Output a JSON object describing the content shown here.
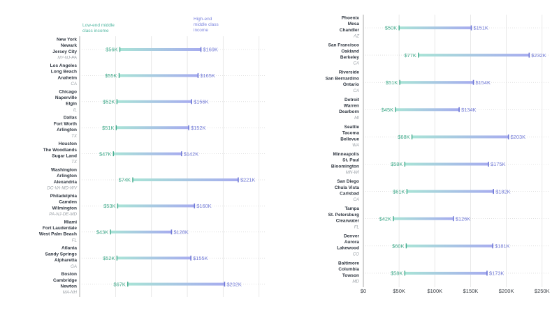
{
  "chart_data": {
    "type": "dumbbell",
    "legend": {
      "low": "Low-end middle\nclass income",
      "high": "High-end\nmiddle class\nincome"
    },
    "colors": {
      "low": "#3fa98a",
      "high": "#6f78d6",
      "bar_low": "#a8e3d6",
      "bar_high": "#a7acef"
    },
    "xlim": [
      0,
      260
    ],
    "x_ticks": [
      {
        "value": 0,
        "label": "$0"
      },
      {
        "value": 50,
        "label": "$50K"
      },
      {
        "value": 100,
        "label": "$100K"
      },
      {
        "value": 150,
        "label": "$150K"
      },
      {
        "value": 200,
        "label": "$200K"
      },
      {
        "value": 250,
        "label": "$250K"
      }
    ],
    "panels": [
      {
        "show_axis_labels": false,
        "metros": [
          {
            "cities": [
              "New York",
              "Newark",
              "Jersey City"
            ],
            "state": "NY-NJ-PA",
            "low": 56,
            "high": 169,
            "low_label": "$56K",
            "high_label": "$169K"
          },
          {
            "cities": [
              "Los Angeles",
              "Long Beach",
              "Anaheim"
            ],
            "state": "CA",
            "low": 55,
            "high": 165,
            "low_label": "$55K",
            "high_label": "$165K"
          },
          {
            "cities": [
              "Chicago",
              "Naperville",
              "Elgin"
            ],
            "state": "IL",
            "low": 52,
            "high": 156,
            "low_label": "$52K",
            "high_label": "$156K"
          },
          {
            "cities": [
              "Dallas",
              "Fort Worth",
              "Arlington"
            ],
            "state": "TX",
            "low": 51,
            "high": 152,
            "low_label": "$51K",
            "high_label": "$152K"
          },
          {
            "cities": [
              "Houston",
              "The Woodlands",
              "Sugar Land"
            ],
            "state": "TX",
            "low": 47,
            "high": 142,
            "low_label": "$47K",
            "high_label": "$142K"
          },
          {
            "cities": [
              "Washington",
              "Arlington",
              "Alexandria"
            ],
            "state": "DC-VA-MD-WV",
            "low": 74,
            "high": 221,
            "low_label": "$74K",
            "high_label": "$221K"
          },
          {
            "cities": [
              "Philadelphia",
              "Camden",
              "Wilmington"
            ],
            "state": "PA-NJ-DE-MD",
            "low": 53,
            "high": 160,
            "low_label": "$53K",
            "high_label": "$160K"
          },
          {
            "cities": [
              "Miami",
              "Fort Lauderdale",
              "West Palm Beach"
            ],
            "state": "FL",
            "low": 43,
            "high": 128,
            "low_label": "$43K",
            "high_label": "$128K"
          },
          {
            "cities": [
              "Atlanta",
              "Sandy Springs",
              "Alpharetta"
            ],
            "state": "GA",
            "low": 52,
            "high": 155,
            "low_label": "$52K",
            "high_label": "$155K"
          },
          {
            "cities": [
              "Boston",
              "Cambridge",
              "Newton"
            ],
            "state": "MA-NH",
            "low": 67,
            "high": 202,
            "low_label": "$67K",
            "high_label": "$202K"
          }
        ]
      },
      {
        "show_axis_labels": true,
        "metros": [
          {
            "cities": [
              "Phoenix",
              "Mesa",
              "Chandler"
            ],
            "state": "AZ",
            "low": 50,
            "high": 151,
            "low_label": "$50K",
            "high_label": "$151K"
          },
          {
            "cities": [
              "San Francisco",
              "Oakland",
              "Berkeley"
            ],
            "state": "CA",
            "low": 77,
            "high": 232,
            "low_label": "$77K",
            "high_label": "$232K"
          },
          {
            "cities": [
              "Riverside",
              "San Bernardino",
              "Ontario"
            ],
            "state": "CA",
            "low": 51,
            "high": 154,
            "low_label": "$51K",
            "high_label": "$154K"
          },
          {
            "cities": [
              "Detroit",
              "Warren",
              "Dearborn"
            ],
            "state": "MI",
            "low": 45,
            "high": 134,
            "low_label": "$45K",
            "high_label": "$134K"
          },
          {
            "cities": [
              "Seattle",
              "Tacoma",
              "Bellevue"
            ],
            "state": "WA",
            "low": 68,
            "high": 203,
            "low_label": "$68K",
            "high_label": "$203K"
          },
          {
            "cities": [
              "Minneapolis",
              "St. Paul",
              "Bloomington"
            ],
            "state": "MN-WI",
            "low": 58,
            "high": 175,
            "low_label": "$58K",
            "high_label": "$175K"
          },
          {
            "cities": [
              "San Diego",
              "Chula Vista",
              "Carlsbad"
            ],
            "state": "CA",
            "low": 61,
            "high": 182,
            "low_label": "$61K",
            "high_label": "$182K"
          },
          {
            "cities": [
              "Tampa",
              "St. Petersburg",
              "Clearwater"
            ],
            "state": "FL",
            "low": 42,
            "high": 126,
            "low_label": "$42K",
            "high_label": "$126K"
          },
          {
            "cities": [
              "Denver",
              "Aurora",
              "Lakewood"
            ],
            "state": "CO",
            "low": 60,
            "high": 181,
            "low_label": "$60K",
            "high_label": "$181K"
          },
          {
            "cities": [
              "Baltimore",
              "Columbia",
              "Towson"
            ],
            "state": "MD",
            "low": 58,
            "high": 173,
            "low_label": "$58K",
            "high_label": "$173K"
          }
        ]
      }
    ]
  }
}
